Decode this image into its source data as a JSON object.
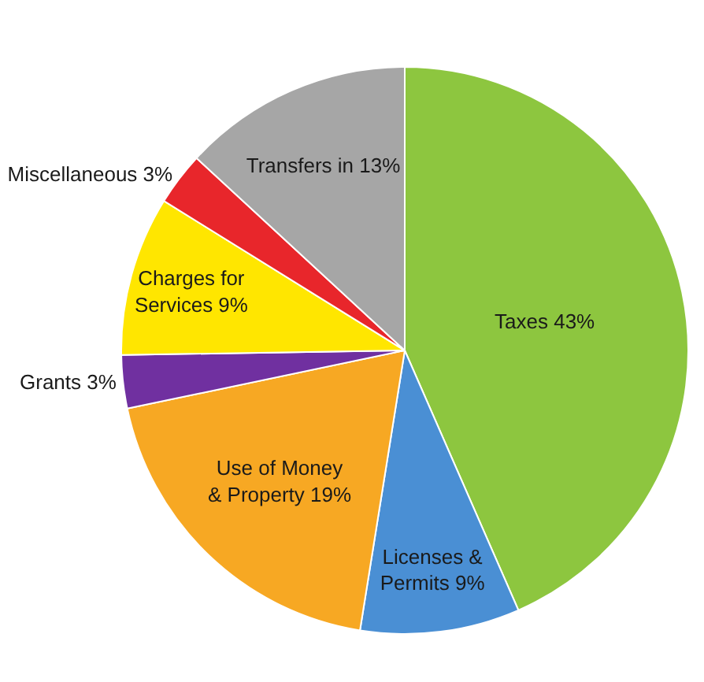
{
  "chart_data": {
    "type": "pie",
    "categories": [
      "Taxes",
      "Licenses & Permits",
      "Use of Money & Property",
      "Grants",
      "Charges for Services",
      "Miscellaneous",
      "Transfers in"
    ],
    "values": [
      43,
      9,
      19,
      3,
      9,
      3,
      13
    ],
    "value_labels": [
      "43%",
      "9%",
      "19%",
      "3%",
      "9%",
      "3%",
      "13%"
    ],
    "colors": [
      "#8dc63f",
      "#4a8fd4",
      "#f7a823",
      "#7030a0",
      "#ffe600",
      "#e8262b",
      "#a6a6a6"
    ],
    "legend": false
  }
}
